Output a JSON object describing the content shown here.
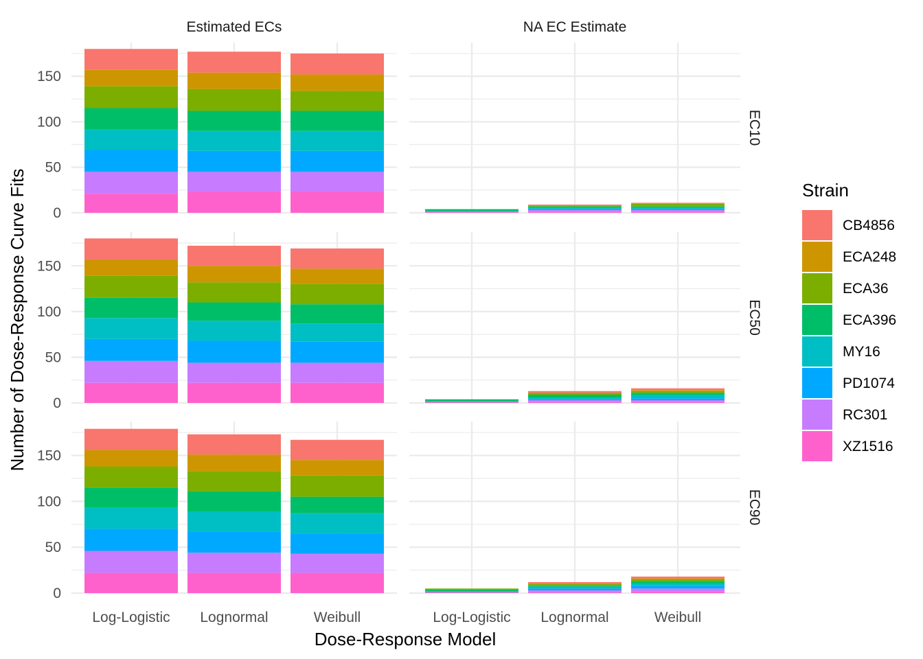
{
  "chart_data": {
    "type": "bar",
    "stacked": true,
    "faceted": true,
    "xlabel": "Dose-Response Model",
    "ylabel": "Number of Dose-Response Curve Fits",
    "ylim": [
      0,
      180
    ],
    "yticks": [
      0,
      50,
      100,
      150
    ],
    "categories": [
      "Log-Logistic",
      "Lognormal",
      "Weibull"
    ],
    "facet_columns": [
      "Estimated ECs",
      "NA EC Estimate"
    ],
    "facet_rows": [
      "EC10",
      "EC50",
      "EC90"
    ],
    "legend": {
      "title": "Strain",
      "position": "right",
      "entries": [
        "CB4856",
        "ECA248",
        "ECA36",
        "ECA396",
        "MY16",
        "PD1074",
        "RC301",
        "XZ1516"
      ]
    },
    "series_colors": {
      "CB4856": "#F8766D",
      "ECA248": "#CD9600",
      "ECA36": "#7CAE00",
      "ECA396": "#00BE67",
      "MY16": "#00BFC4",
      "PD1074": "#00A9FF",
      "RC301": "#C77CFF",
      "XZ1516": "#FF61CC"
    },
    "stack_order_bottom_to_top": [
      "XZ1516",
      "RC301",
      "PD1074",
      "MY16",
      "ECA396",
      "ECA36",
      "ECA248",
      "CB4856"
    ],
    "panels": [
      {
        "row": "EC10",
        "col": "Estimated ECs",
        "values": {
          "Log-Logistic": {
            "XZ1516": 21,
            "RC301": 24,
            "PD1074": 24,
            "MY16": 23,
            "ECA396": 23,
            "ECA36": 24,
            "ECA248": 18,
            "CB4856": 23
          },
          "Lognormal": {
            "XZ1516": 23,
            "RC301": 22,
            "PD1074": 23,
            "MY16": 22,
            "ECA396": 22,
            "ECA36": 24,
            "ECA248": 18,
            "CB4856": 23
          },
          "Weibull": {
            "XZ1516": 23,
            "RC301": 22,
            "PD1074": 23,
            "MY16": 22,
            "ECA396": 22,
            "ECA36": 22,
            "ECA248": 18,
            "CB4856": 23
          }
        }
      },
      {
        "row": "EC10",
        "col": "NA EC Estimate",
        "values": {
          "Log-Logistic": {
            "XZ1516": 1,
            "RC301": 0,
            "PD1074": 0,
            "MY16": 1,
            "ECA396": 2,
            "ECA36": 0,
            "ECA248": 0,
            "CB4856": 0
          },
          "Lognormal": {
            "XZ1516": 1,
            "RC301": 2,
            "PD1074": 1,
            "MY16": 2,
            "ECA396": 1,
            "ECA36": 1,
            "ECA248": 0,
            "CB4856": 1
          },
          "Weibull": {
            "XZ1516": 1,
            "RC301": 2,
            "PD1074": 1,
            "MY16": 2,
            "ECA396": 1,
            "ECA36": 3,
            "ECA248": 0,
            "CB4856": 1
          }
        }
      },
      {
        "row": "EC50",
        "col": "Estimated ECs",
        "values": {
          "Log-Logistic": {
            "XZ1516": 22,
            "RC301": 24,
            "PD1074": 24,
            "MY16": 23,
            "ECA396": 22,
            "ECA36": 24,
            "ECA248": 18,
            "CB4856": 23
          },
          "Lognormal": {
            "XZ1516": 22,
            "RC301": 22,
            "PD1074": 24,
            "MY16": 22,
            "ECA396": 20,
            "ECA36": 22,
            "ECA248": 18,
            "CB4856": 22
          },
          "Weibull": {
            "XZ1516": 22,
            "RC301": 22,
            "PD1074": 23,
            "MY16": 20,
            "ECA396": 21,
            "ECA36": 22,
            "ECA248": 17,
            "CB4856": 22
          }
        }
      },
      {
        "row": "EC50",
        "col": "NA EC Estimate",
        "values": {
          "Log-Logistic": {
            "XZ1516": 1,
            "RC301": 0,
            "PD1074": 0,
            "MY16": 1,
            "ECA396": 2,
            "ECA36": 0,
            "ECA248": 0,
            "CB4856": 0
          },
          "Lognormal": {
            "XZ1516": 1,
            "RC301": 2,
            "PD1074": 1,
            "MY16": 2,
            "ECA396": 3,
            "ECA36": 2,
            "ECA248": 0,
            "CB4856": 2
          },
          "Weibull": {
            "XZ1516": 1,
            "RC301": 2,
            "PD1074": 2,
            "MY16": 4,
            "ECA396": 2,
            "ECA36": 2,
            "ECA248": 1,
            "CB4856": 2
          }
        }
      },
      {
        "row": "EC90",
        "col": "Estimated ECs",
        "values": {
          "Log-Logistic": {
            "XZ1516": 22,
            "RC301": 24,
            "PD1074": 24,
            "MY16": 23,
            "ECA396": 22,
            "ECA36": 23,
            "ECA248": 18,
            "CB4856": 23
          },
          "Lognormal": {
            "XZ1516": 22,
            "RC301": 22,
            "PD1074": 23,
            "MY16": 22,
            "ECA396": 22,
            "ECA36": 22,
            "ECA248": 18,
            "CB4856": 22
          },
          "Weibull": {
            "XZ1516": 22,
            "RC301": 21,
            "PD1074": 22,
            "MY16": 22,
            "ECA396": 18,
            "ECA36": 23,
            "ECA248": 17,
            "CB4856": 22
          }
        }
      },
      {
        "row": "EC90",
        "col": "NA EC Estimate",
        "values": {
          "Log-Logistic": {
            "XZ1516": 1,
            "RC301": 0,
            "PD1074": 0,
            "MY16": 1,
            "ECA396": 2,
            "ECA36": 1,
            "ECA248": 0,
            "CB4856": 0
          },
          "Lognormal": {
            "XZ1516": 1,
            "RC301": 2,
            "PD1074": 2,
            "MY16": 2,
            "ECA396": 1,
            "ECA36": 2,
            "ECA248": 0,
            "CB4856": 2
          },
          "Weibull": {
            "XZ1516": 2,
            "RC301": 3,
            "PD1074": 3,
            "MY16": 2,
            "ECA396": 3,
            "ECA36": 2,
            "ECA248": 1,
            "CB4856": 2
          }
        }
      }
    ]
  }
}
